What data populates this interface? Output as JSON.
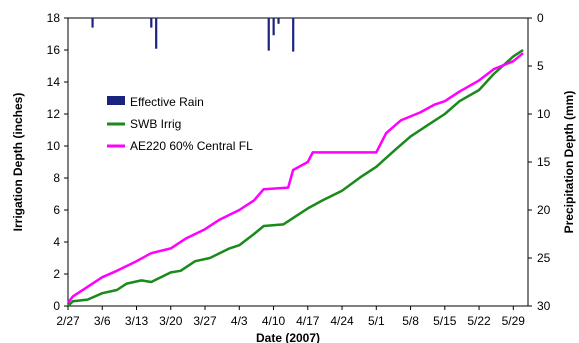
{
  "chart_data": {
    "type": "line",
    "xlabel": "Date (2007)",
    "ylabel": "Irrigation Depth (inches)",
    "y2label": "Precipitation Depth (mm)",
    "xlim": [
      "2007-02-27",
      "2007-06-01"
    ],
    "ylim": [
      0,
      18
    ],
    "y2lim": [
      0,
      30
    ],
    "y2_inverted": true,
    "x_ticks": [
      "2/27",
      "3/6",
      "3/13",
      "3/20",
      "3/27",
      "4/3",
      "4/10",
      "4/17",
      "4/24",
      "5/1",
      "5/8",
      "5/15",
      "5/22",
      "5/29"
    ],
    "y_ticks": [
      0,
      2,
      4,
      6,
      8,
      10,
      12,
      14,
      16,
      18
    ],
    "y2_ticks": [
      0,
      5,
      10,
      15,
      20,
      25,
      30
    ],
    "legend_position": "upper-left",
    "colors": {
      "rain": "#1a237e",
      "swb": "#1a8a1a",
      "ae220": "#ff00ff"
    },
    "series": [
      {
        "name": "Effective Rain",
        "type": "bar",
        "axis": "y2",
        "points": [
          {
            "x": "2007-03-04",
            "y": 1.0
          },
          {
            "x": "2007-03-16",
            "y": 1.0
          },
          {
            "x": "2007-03-17",
            "y": 3.2
          },
          {
            "x": "2007-04-09",
            "y": 3.4
          },
          {
            "x": "2007-04-10",
            "y": 1.8
          },
          {
            "x": "2007-04-11",
            "y": 0.6
          },
          {
            "x": "2007-04-14",
            "y": 3.5
          }
        ]
      },
      {
        "name": "SWB Irrig",
        "axis": "y",
        "points": [
          {
            "x": "2007-02-27",
            "y": 0.0
          },
          {
            "x": "2007-02-28",
            "y": 0.3
          },
          {
            "x": "2007-03-03",
            "y": 0.4
          },
          {
            "x": "2007-03-06",
            "y": 0.8
          },
          {
            "x": "2007-03-09",
            "y": 1.0
          },
          {
            "x": "2007-03-11",
            "y": 1.4
          },
          {
            "x": "2007-03-14",
            "y": 1.6
          },
          {
            "x": "2007-03-16",
            "y": 1.5
          },
          {
            "x": "2007-03-20",
            "y": 2.1
          },
          {
            "x": "2007-03-22",
            "y": 2.2
          },
          {
            "x": "2007-03-25",
            "y": 2.8
          },
          {
            "x": "2007-03-28",
            "y": 3.0
          },
          {
            "x": "2007-04-01",
            "y": 3.6
          },
          {
            "x": "2007-04-03",
            "y": 3.8
          },
          {
            "x": "2007-04-06",
            "y": 4.5
          },
          {
            "x": "2007-04-08",
            "y": 5.0
          },
          {
            "x": "2007-04-12",
            "y": 5.1
          },
          {
            "x": "2007-04-15",
            "y": 5.7
          },
          {
            "x": "2007-04-17",
            "y": 6.1
          },
          {
            "x": "2007-04-20",
            "y": 6.6
          },
          {
            "x": "2007-04-24",
            "y": 7.2
          },
          {
            "x": "2007-04-28",
            "y": 8.1
          },
          {
            "x": "2007-05-01",
            "y": 8.7
          },
          {
            "x": "2007-05-05",
            "y": 9.8
          },
          {
            "x": "2007-05-08",
            "y": 10.6
          },
          {
            "x": "2007-05-12",
            "y": 11.4
          },
          {
            "x": "2007-05-15",
            "y": 12.0
          },
          {
            "x": "2007-05-18",
            "y": 12.8
          },
          {
            "x": "2007-05-22",
            "y": 13.5
          },
          {
            "x": "2007-05-25",
            "y": 14.5
          },
          {
            "x": "2007-05-29",
            "y": 15.6
          },
          {
            "x": "2007-05-31",
            "y": 16.0
          }
        ]
      },
      {
        "name": "AE220 60% Central FL",
        "axis": "y",
        "points": [
          {
            "x": "2007-02-27",
            "y": 0.2
          },
          {
            "x": "2007-02-28",
            "y": 0.6
          },
          {
            "x": "2007-03-03",
            "y": 1.2
          },
          {
            "x": "2007-03-06",
            "y": 1.8
          },
          {
            "x": "2007-03-09",
            "y": 2.2
          },
          {
            "x": "2007-03-13",
            "y": 2.8
          },
          {
            "x": "2007-03-16",
            "y": 3.3
          },
          {
            "x": "2007-03-20",
            "y": 3.6
          },
          {
            "x": "2007-03-23",
            "y": 4.2
          },
          {
            "x": "2007-03-27",
            "y": 4.8
          },
          {
            "x": "2007-03-30",
            "y": 5.4
          },
          {
            "x": "2007-04-03",
            "y": 6.0
          },
          {
            "x": "2007-04-06",
            "y": 6.6
          },
          {
            "x": "2007-04-08",
            "y": 7.3
          },
          {
            "x": "2007-04-13",
            "y": 7.4
          },
          {
            "x": "2007-04-14",
            "y": 8.5
          },
          {
            "x": "2007-04-17",
            "y": 9.0
          },
          {
            "x": "2007-04-18",
            "y": 9.6
          },
          {
            "x": "2007-05-01",
            "y": 9.6
          },
          {
            "x": "2007-05-03",
            "y": 10.8
          },
          {
            "x": "2007-05-06",
            "y": 11.6
          },
          {
            "x": "2007-05-10",
            "y": 12.1
          },
          {
            "x": "2007-05-13",
            "y": 12.6
          },
          {
            "x": "2007-05-15",
            "y": 12.8
          },
          {
            "x": "2007-05-18",
            "y": 13.4
          },
          {
            "x": "2007-05-22",
            "y": 14.1
          },
          {
            "x": "2007-05-25",
            "y": 14.8
          },
          {
            "x": "2007-05-29",
            "y": 15.3
          },
          {
            "x": "2007-05-31",
            "y": 15.8
          }
        ]
      }
    ]
  }
}
